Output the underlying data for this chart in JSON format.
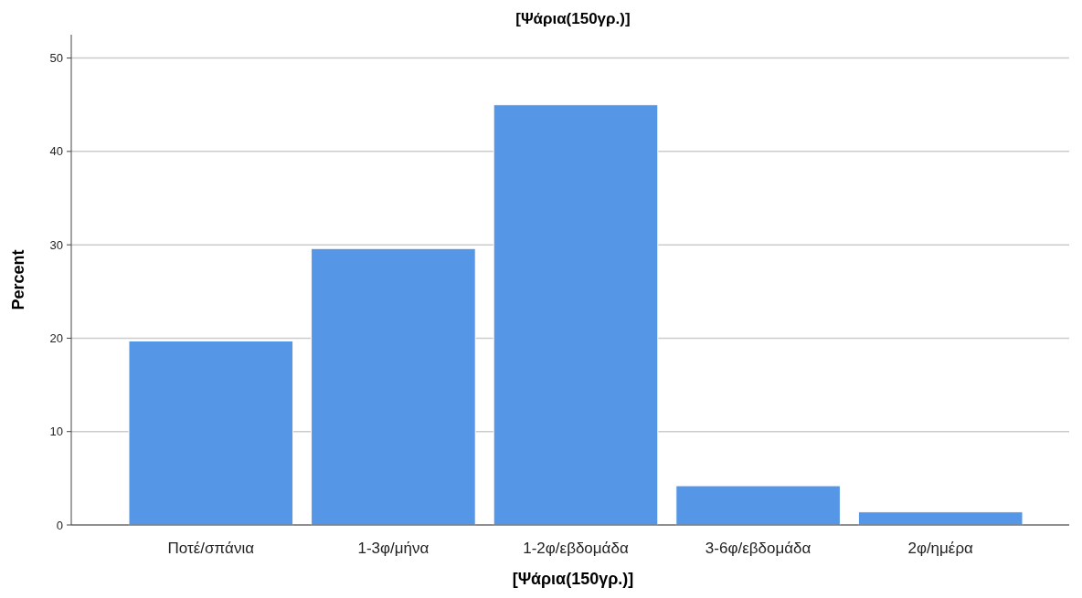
{
  "chart_data": {
    "type": "bar",
    "title": "[Ψάρια(150γρ.)]",
    "xlabel": "[Ψάρια(150γρ.)]",
    "ylabel": "Percent",
    "categories": [
      "Ποτέ/σπάνια",
      "1-3φ/μήνα",
      "1-2φ/εβδομάδα",
      "3-6φ/εβδομάδα",
      "2φ/ημέρα"
    ],
    "values": [
      19.7,
      29.6,
      45.0,
      4.2,
      1.4
    ],
    "color": "#5596e6",
    "ylim": [
      0,
      52.5
    ],
    "yticks": [
      0,
      10,
      20,
      30,
      40,
      50
    ],
    "grid": "y"
  }
}
